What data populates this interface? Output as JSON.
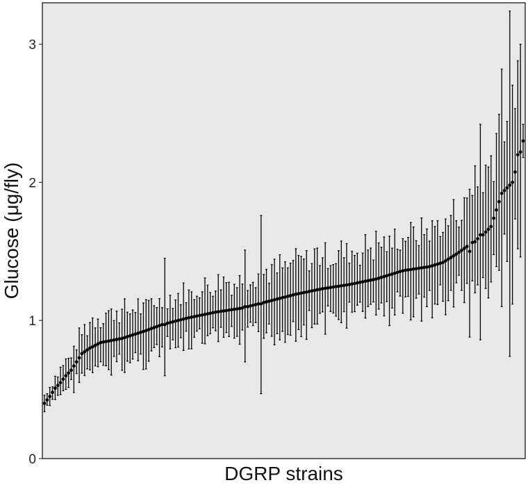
{
  "chart_data": {
    "type": "scatter",
    "subtype": "point-with-error-bars, strains sorted by mean",
    "xlabel": "DGRP strains",
    "ylabel": "Glucose (μg/fly)",
    "ylim": [
      0,
      3.3
    ],
    "yticks": [
      "0",
      "1",
      "2",
      "3"
    ],
    "x_tick_labels": false,
    "grid": false,
    "background": "#e8e8e8",
    "point_color": "#000000",
    "n_strains": 180,
    "mean_anchors": [
      [
        1,
        0.4
      ],
      [
        3,
        0.45
      ],
      [
        5,
        0.51
      ],
      [
        7,
        0.55
      ],
      [
        9,
        0.6
      ],
      [
        11,
        0.64
      ],
      [
        13,
        0.7
      ],
      [
        15,
        0.76
      ],
      [
        18,
        0.8
      ],
      [
        22,
        0.84
      ],
      [
        30,
        0.87
      ],
      [
        38,
        0.92
      ],
      [
        45,
        0.97
      ],
      [
        55,
        1.02
      ],
      [
        65,
        1.06
      ],
      [
        75,
        1.09
      ],
      [
        85,
        1.14
      ],
      [
        95,
        1.19
      ],
      [
        105,
        1.23
      ],
      [
        115,
        1.26
      ],
      [
        125,
        1.3
      ],
      [
        135,
        1.36
      ],
      [
        145,
        1.39
      ],
      [
        150,
        1.42
      ],
      [
        155,
        1.48
      ],
      [
        160,
        1.55
      ],
      [
        165,
        1.62
      ],
      [
        168,
        1.68
      ],
      [
        170,
        1.8
      ],
      [
        172,
        1.92
      ],
      [
        174,
        1.96
      ],
      [
        176,
        2.0
      ],
      [
        178,
        2.15
      ],
      [
        180,
        2.3
      ]
    ],
    "error_halfwidth_anchors": [
      [
        1,
        0.06
      ],
      [
        10,
        0.1
      ],
      [
        20,
        0.2
      ],
      [
        40,
        0.18
      ],
      [
        60,
        0.18
      ],
      [
        80,
        0.22
      ],
      [
        100,
        0.24
      ],
      [
        120,
        0.22
      ],
      [
        140,
        0.26
      ],
      [
        160,
        0.3
      ],
      [
        170,
        0.5
      ],
      [
        180,
        0.6
      ]
    ],
    "notable_bars": [
      {
        "strain": 82,
        "mean": 1.12,
        "low": 0.47,
        "high": 1.76
      },
      {
        "strain": 76,
        "mean": 1.1,
        "low": 0.7,
        "high": 1.51
      },
      {
        "strain": 46,
        "mean": 0.97,
        "low": 0.6,
        "high": 1.45
      },
      {
        "strain": 160,
        "mean": 1.5,
        "low": 0.88,
        "high": 1.95
      },
      {
        "strain": 162,
        "mean": 1.57,
        "low": 1.2,
        "high": 2.12
      },
      {
        "strain": 164,
        "mean": 1.62,
        "low": 0.86,
        "high": 2.42
      },
      {
        "strain": 172,
        "mean": 1.92,
        "low": 1.1,
        "high": 2.82
      },
      {
        "strain": 175,
        "mean": 1.98,
        "low": 0.74,
        "high": 3.24
      },
      {
        "strain": 178,
        "mean": 2.2,
        "low": 1.52,
        "high": 2.88
      },
      {
        "strain": 179,
        "mean": 2.22,
        "low": 1.46,
        "high": 3.0
      },
      {
        "strain": 180,
        "mean": 2.3,
        "low": 2.18,
        "high": 2.42
      }
    ]
  }
}
